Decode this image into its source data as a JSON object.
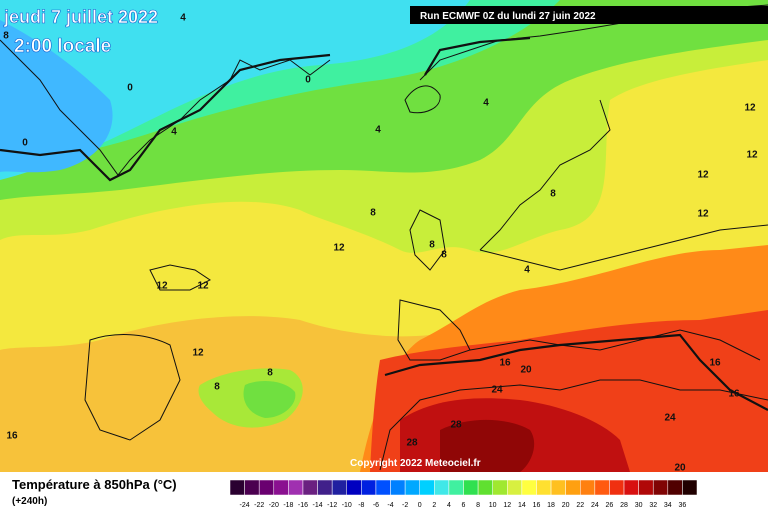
{
  "header": {
    "date": "jeudi 7 juillet 2022",
    "time": "2:00 locale",
    "run": "Run ECMWF 0Z du lundi 27 juin 2022"
  },
  "copyright": "Copyright 2022 Meteociel.fr",
  "legend": {
    "title": "Température à 850hPa (°C)",
    "lead": "(+240h)",
    "labels": [
      -24,
      -22,
      -20,
      -18,
      -16,
      -14,
      -12,
      -10,
      -8,
      -6,
      -4,
      -2,
      0,
      2,
      4,
      6,
      8,
      10,
      12,
      14,
      16,
      18,
      20,
      22,
      24,
      26,
      28,
      30,
      32,
      34,
      36
    ],
    "colors": [
      "#2a0030",
      "#4b0050",
      "#6a0070",
      "#8a1090",
      "#a030b0",
      "#6a2080",
      "#40208a",
      "#2020a0",
      "#0000c0",
      "#0020e0",
      "#0050ff",
      "#0080ff",
      "#00a8ff",
      "#00d0ff",
      "#40e8e8",
      "#40f0a0",
      "#30e050",
      "#60e030",
      "#a0e830",
      "#d8f040",
      "#ffff40",
      "#ffe030",
      "#ffc020",
      "#ffa010",
      "#ff8010",
      "#ff5a10",
      "#f03010",
      "#d81010",
      "#b00808",
      "#800404",
      "#500000",
      "#200000"
    ]
  },
  "contour_labels": [
    4,
    8,
    0,
    0,
    4,
    4,
    4,
    0,
    12,
    12,
    12,
    12,
    8,
    8,
    8,
    8,
    12,
    12,
    12,
    4,
    12,
    8,
    8,
    16,
    20,
    24,
    16,
    16,
    24,
    16,
    28,
    28,
    20
  ]
}
